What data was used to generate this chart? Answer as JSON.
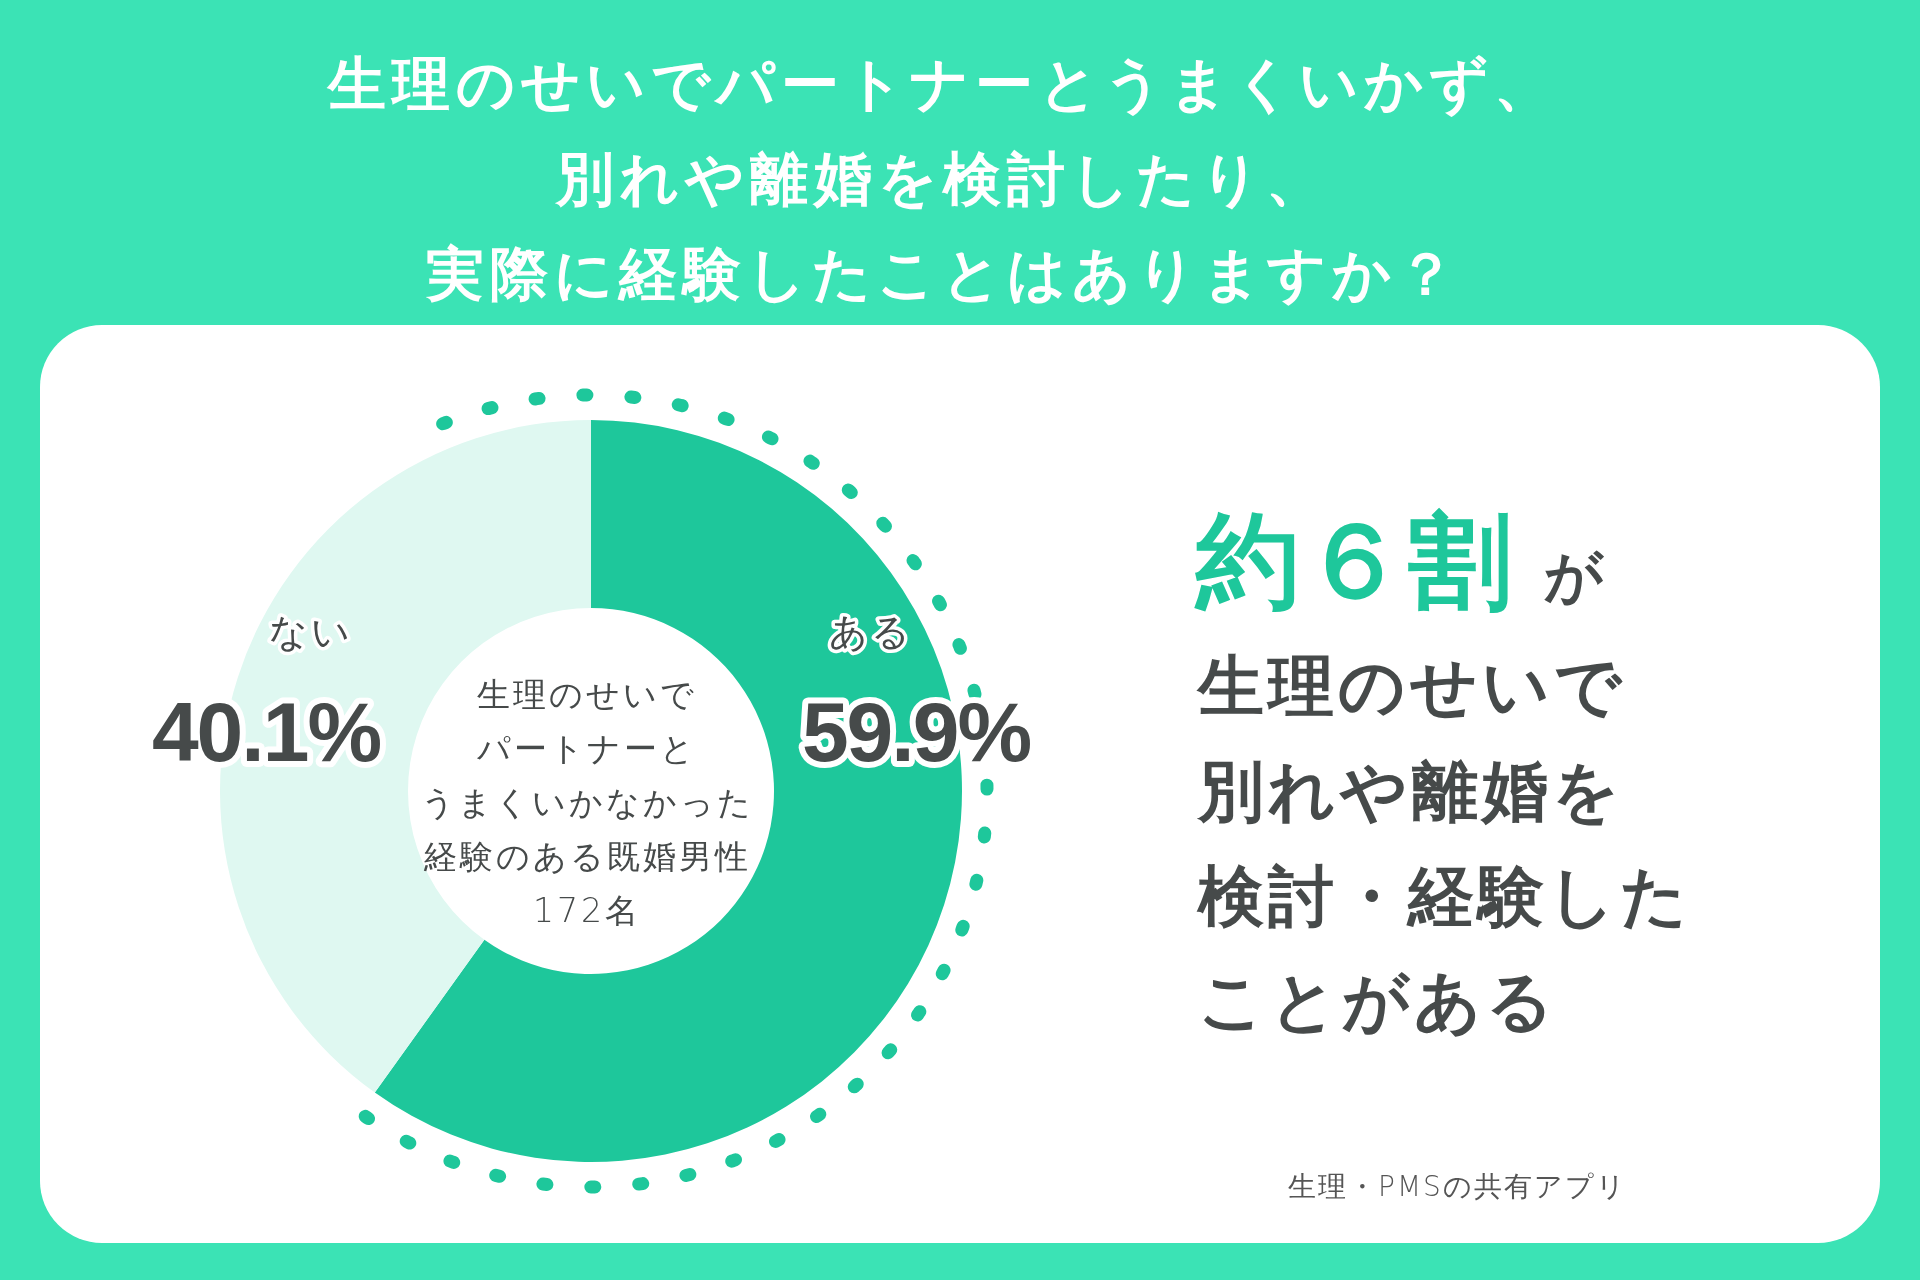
{
  "chart_data": {
    "type": "donut",
    "title": "生理のせいでパートナーとうまくいかず、別れや離婚を検討したり、実際に経験したことはありますか？",
    "categories": [
      "ある",
      "ない"
    ],
    "values": [
      59.9,
      40.1
    ],
    "colors": [
      "#1ec79b",
      "#dff8f1"
    ],
    "value_labels": [
      "59.9%",
      "40.1%"
    ],
    "annotations": [
      "生理のせいで",
      "パートナーと",
      "うまくいかなかった",
      "経験のある既婚男性",
      "172名",
      "約６割",
      "が",
      "生理のせいで",
      "別れや離婚を",
      "検討・経験した",
      "ことがある",
      "生理・PMSの共有アプリ"
    ]
  }
}
